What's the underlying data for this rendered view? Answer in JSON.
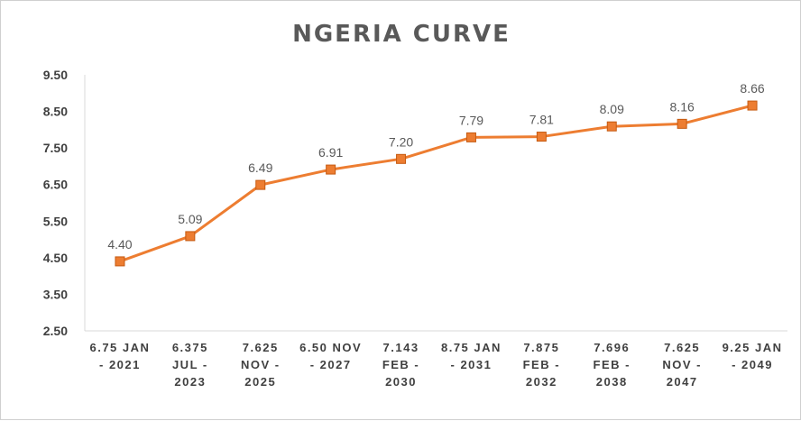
{
  "chart_data": {
    "type": "line",
    "title": "NGERIA CURVE",
    "xlabel": "",
    "ylabel": "",
    "categories": [
      [
        "6.75  JAN",
        "- 2021"
      ],
      [
        "6.375",
        "JUL -",
        "2023"
      ],
      [
        "7.625",
        "NOV -",
        "2025"
      ],
      [
        "6.50 NOV",
        "- 2027"
      ],
      [
        "7.143",
        "FEB -",
        "2030"
      ],
      [
        "8.75 JAN",
        "- 2031"
      ],
      [
        "7.875",
        "FEB -",
        "2032"
      ],
      [
        "7.696",
        "FEB -",
        "2038"
      ],
      [
        "7.625",
        "NOV -",
        "2047"
      ],
      [
        "9.25 JAN",
        "- 2049"
      ]
    ],
    "series": [
      {
        "values": [
          4.4,
          5.09,
          6.49,
          6.91,
          7.2,
          7.79,
          7.81,
          8.09,
          8.16,
          8.66
        ],
        "labels": [
          "4.40",
          "5.09",
          "6.49",
          "6.91",
          "7.20",
          "7.79",
          "7.81",
          "8.09",
          "8.16",
          "8.66"
        ],
        "color": "#ed7d31",
        "marker": "square"
      }
    ],
    "ylim": [
      2.5,
      9.5
    ],
    "yticks": [
      9.5,
      8.5,
      7.5,
      6.5,
      5.5,
      4.5,
      3.5,
      2.5
    ],
    "ytick_labels": [
      "9.50",
      "8.50",
      "7.50",
      "6.50",
      "5.50",
      "4.50",
      "3.50",
      "2.50"
    ],
    "grid": false,
    "axis_color": "#d9d9d9"
  }
}
